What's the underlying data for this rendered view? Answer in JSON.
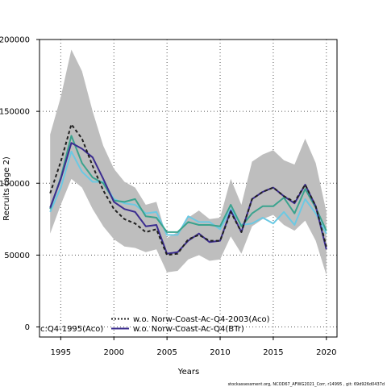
{
  "chart_data": {
    "type": "line",
    "xlabel": "Years",
    "ylabel": "Recruits (age 2)",
    "xlim": [
      1993,
      2021
    ],
    "ylim": [
      -7000,
      200000
    ],
    "grid": true,
    "xticks": [
      1995,
      2000,
      2005,
      2010,
      2015,
      2020
    ],
    "xtick_labels": [
      "1995",
      "2000",
      "2005",
      "2010",
      "2015",
      "2020"
    ],
    "yticks": [
      0,
      50000,
      100000,
      150000,
      200000
    ],
    "ytick_labels": [
      "0",
      "50000",
      "100000",
      "150000",
      "200000"
    ],
    "x": [
      1994,
      1995,
      1996,
      1997,
      1998,
      1999,
      2000,
      2001,
      2002,
      2003,
      2004,
      2005,
      2006,
      2007,
      2008,
      2009,
      2010,
      2011,
      2012,
      2013,
      2014,
      2015,
      2016,
      2017,
      2018,
      2019,
      2020
    ],
    "band": {
      "upper": [
        134000,
        160000,
        193000,
        178000,
        150000,
        126000,
        110000,
        101000,
        97000,
        85000,
        87000,
        62000,
        66000,
        76000,
        81000,
        75000,
        76000,
        103000,
        85000,
        115000,
        120000,
        123000,
        116000,
        113000,
        131000,
        114000,
        80000
      ],
      "lower": [
        65000,
        85000,
        103000,
        97000,
        82000,
        70000,
        61000,
        56000,
        55000,
        52000,
        54000,
        38000,
        39000,
        47000,
        50000,
        46000,
        47000,
        63000,
        51000,
        70000,
        75000,
        78000,
        71000,
        67000,
        74000,
        60000,
        36000
      ],
      "color": "#bebebe"
    },
    "series": [
      {
        "color": "#202020",
        "dashed": true,
        "values": [
          93000,
          115000,
          141000,
          131000,
          112000,
          95000,
          82000,
          75000,
          72000,
          66000,
          68000,
          50000,
          51000,
          61000,
          64000,
          60000,
          60000,
          80000,
          66000,
          89000,
          94000,
          97000,
          91000,
          87000,
          99000,
          84000,
          56000
        ]
      },
      {
        "color": "#3b2c8f",
        "dashed": false,
        "values": [
          83000,
          103000,
          128000,
          124000,
          118000,
          103000,
          87000,
          82000,
          80000,
          70000,
          71000,
          51000,
          52000,
          60000,
          65000,
          59000,
          60000,
          81000,
          66000,
          89000,
          94000,
          97000,
          91000,
          86000,
          99000,
          84000,
          54000
        ]
      },
      {
        "color": "#3aa38e",
        "dashed": false,
        "values": [
          82000,
          104000,
          133000,
          114000,
          104000,
          100000,
          88000,
          87000,
          89000,
          77000,
          76000,
          66000,
          66000,
          73000,
          71000,
          71000,
          70000,
          85000,
          70000,
          79000,
          84000,
          84000,
          90000,
          79000,
          96000,
          83000,
          67000
        ]
      },
      {
        "color": "#6cc9e3",
        "dashed": false,
        "values": [
          80000,
          97000,
          122000,
          108000,
          101000,
          101000,
          89000,
          86000,
          85000,
          79000,
          80000,
          64000,
          64000,
          77000,
          73000,
          73000,
          68000,
          82000,
          71000,
          72000,
          76000,
          72000,
          80000,
          71000,
          89000,
          79000,
          65000
        ]
      }
    ],
    "legend": {
      "placement": "bottom-left",
      "items": [
        {
          "label": "c:Q4-1995(Aco)",
          "color": null,
          "dashed": false
        },
        {
          "label": "w.o. Norw-Coast-Ac-Q4-2003(Aco)",
          "color": "#202020",
          "dashed": true
        },
        {
          "label": "w.o. Norw-Coast-Ac-Q4(BTr)",
          "color": "#3b2c8f",
          "dashed": false
        }
      ]
    }
  },
  "footer": "stockassessment.org, NCOD67_AFWG2021_Corr, r14995 , git: 69d926d0437d"
}
